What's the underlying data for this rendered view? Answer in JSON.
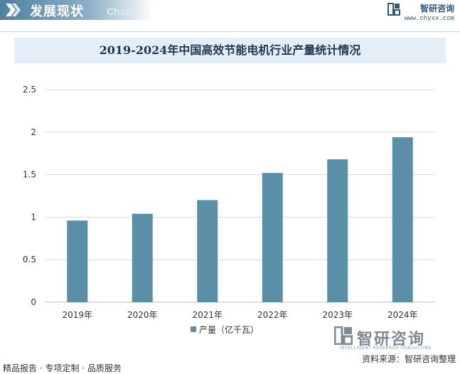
{
  "header": {
    "title": "发展现状",
    "subtitle": "Chain",
    "brand_name": "智研咨询",
    "brand_url": "www.chyxx.com",
    "accent_color": "#4f7fa0"
  },
  "footer": {
    "left_text": "精品报告 · 专项定制 · 品质服务",
    "source_text": "资料来源：智研咨询整理",
    "logo_text": "智研咨询",
    "logo_sub": "INTELLIGENT RESEARCH CONSULTING"
  },
  "chart_data": {
    "type": "bar",
    "title": "2019-2024年中国高效节能电机行业产量统计情况",
    "categories": [
      "2019年",
      "2020年",
      "2021年",
      "2022年",
      "2023年",
      "2024年"
    ],
    "series": [
      {
        "name": "产量（亿千瓦）",
        "values": [
          0.96,
          1.04,
          1.2,
          1.52,
          1.68,
          1.94
        ],
        "color": "#5b8fa8"
      }
    ],
    "yticks": [
      "0",
      "0.5",
      "1",
      "1.5",
      "2",
      "2.5"
    ],
    "ylim": [
      0,
      2.5
    ],
    "grid": true,
    "legend": "bottom"
  }
}
